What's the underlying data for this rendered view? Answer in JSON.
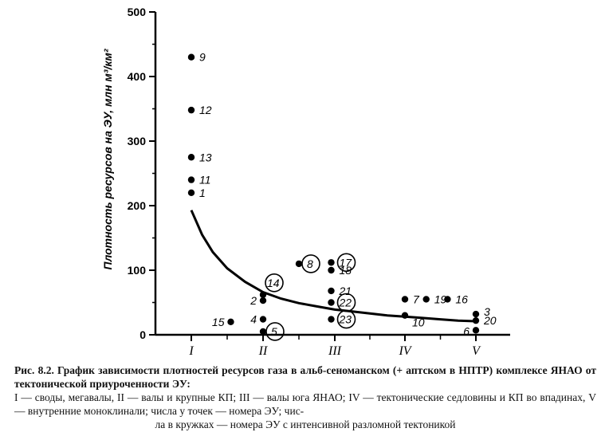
{
  "chart_data": {
    "type": "scatter",
    "title": "",
    "xlabel": "",
    "ylabel": "Плотность ресурсов на ЭУ, млн м³/км²",
    "categories": [
      "I",
      "II",
      "III",
      "IV",
      "V"
    ],
    "ylim": [
      0,
      500
    ],
    "yticks": [
      0,
      100,
      200,
      300,
      400,
      500
    ],
    "grid": false,
    "points": [
      {
        "x": 1.0,
        "y": 430,
        "label": "9",
        "circled": false
      },
      {
        "x": 1.0,
        "y": 348,
        "label": "12",
        "circled": false
      },
      {
        "x": 1.0,
        "y": 275,
        "label": "13",
        "circled": false
      },
      {
        "x": 1.0,
        "y": 240,
        "label": "11",
        "circled": false
      },
      {
        "x": 1.0,
        "y": 220,
        "label": "1",
        "circled": false
      },
      {
        "x": 1.55,
        "y": 20,
        "label": "15",
        "circled": false
      },
      {
        "x": 2.0,
        "y": 62,
        "label": "14",
        "circled": true
      },
      {
        "x": 2.0,
        "y": 53,
        "label": "2",
        "circled": false
      },
      {
        "x": 2.0,
        "y": 24,
        "label": "4",
        "circled": false
      },
      {
        "x": 2.0,
        "y": 5,
        "label": "5",
        "circled": true
      },
      {
        "x": 2.5,
        "y": 110,
        "label": "8",
        "circled": true
      },
      {
        "x": 2.95,
        "y": 112,
        "label": "17",
        "circled": true
      },
      {
        "x": 2.95,
        "y": 100,
        "label": "18",
        "circled": false
      },
      {
        "x": 2.95,
        "y": 68,
        "label": "21",
        "circled": false
      },
      {
        "x": 2.95,
        "y": 50,
        "label": "22",
        "circled": true
      },
      {
        "x": 2.95,
        "y": 24,
        "label": "23",
        "circled": true
      },
      {
        "x": 4.0,
        "y": 55,
        "label": "7",
        "circled": false
      },
      {
        "x": 4.0,
        "y": 30,
        "label": "10",
        "circled": false
      },
      {
        "x": 4.3,
        "y": 55,
        "label": "19",
        "circled": false
      },
      {
        "x": 4.6,
        "y": 55,
        "label": "16",
        "circled": false
      },
      {
        "x": 5.0,
        "y": 32,
        "label": "3",
        "circled": false
      },
      {
        "x": 5.0,
        "y": 22,
        "label": "20",
        "circled": false
      },
      {
        "x": 5.0,
        "y": 7,
        "label": "6",
        "circled": false
      }
    ],
    "trend": {
      "x": [
        1.0,
        1.15,
        1.3,
        1.5,
        1.75,
        2.0,
        2.25,
        2.5,
        2.75,
        3.0,
        3.25,
        3.5,
        3.75,
        4.0,
        4.25,
        4.5,
        4.75,
        5.0
      ],
      "y": [
        193,
        155,
        128,
        103,
        82,
        66,
        56,
        49,
        44,
        39,
        36,
        33,
        30,
        28,
        26,
        24,
        22,
        21
      ]
    }
  },
  "caption": {
    "title": "Рис. 8.2. График зависимости плотностей ресурсов газа в альб-сеноманском (+ аптском в НПТР) комплексе ЯНАО от тектонической приуроченности ЭУ:",
    "body": "I — своды, мегавалы, II — валы и крупные КП; III — валы юга ЯНАО; IV — тектонические седловины и КП во впадинах, V — внутренние моноклинали; числа у точек — номера ЭУ; чис-",
    "last": "ла в кружках — номера ЭУ с интенсивной разломной тектоникой"
  }
}
